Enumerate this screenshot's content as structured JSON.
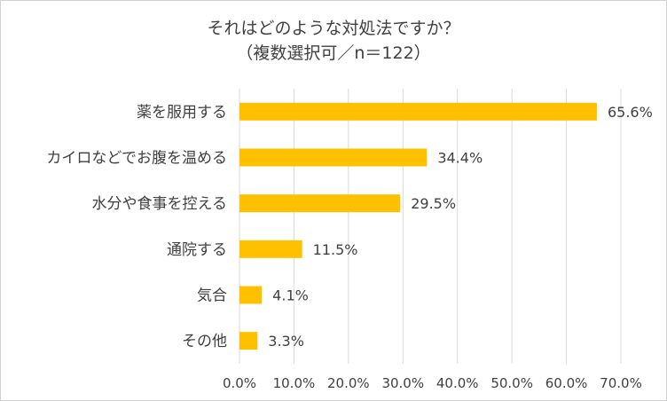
{
  "chart_data": {
    "type": "bar",
    "orientation": "horizontal",
    "title": "それはどのような対処法ですか？",
    "subtitle": "（複数選択可／n＝122）",
    "categories": [
      "薬を服用する",
      "カイロなどでお腹を温める",
      "水分や食事を控える",
      "通院する",
      "気合",
      "その他"
    ],
    "values": [
      65.6,
      34.4,
      29.5,
      11.5,
      4.1,
      3.3
    ],
    "value_labels": [
      "65.6%",
      "34.4%",
      "29.5%",
      "11.5%",
      "4.1%",
      "3.3%"
    ],
    "xlim": [
      0,
      70
    ],
    "xticks": [
      "0.0%",
      "10.0%",
      "20.0%",
      "30.0%",
      "40.0%",
      "50.0%",
      "60.0%",
      "70.0%"
    ],
    "grid": true,
    "bar_color": "#FFC000",
    "grid_color": "#d9d9d9",
    "text_color": "#404040"
  }
}
